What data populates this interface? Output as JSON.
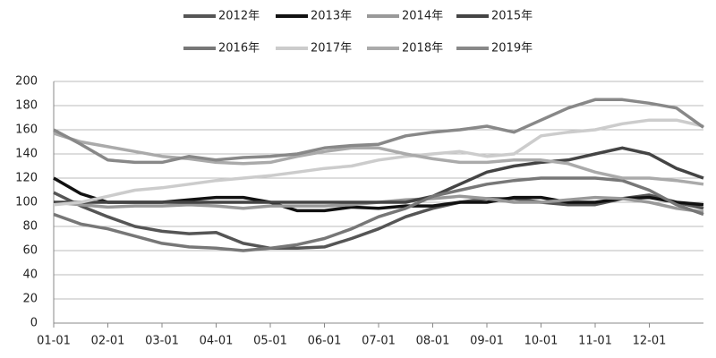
{
  "chart_data": {
    "type": "line",
    "categories": [
      "01-01",
      null,
      "02-01",
      null,
      "03-01",
      null,
      "04-01",
      null,
      "05-01",
      null,
      "06-01",
      null,
      "07-01",
      null,
      "08-01",
      null,
      "09-01",
      null,
      "10-01",
      null,
      "11-01",
      null,
      "12-01",
      null,
      null
    ],
    "ylim": [
      0,
      200
    ],
    "yticks": [
      0,
      20,
      40,
      60,
      80,
      100,
      120,
      140,
      160,
      180,
      200
    ],
    "grid": true,
    "series": [
      {
        "name": "2012年",
        "color": "#555555",
        "values": [
          108,
          97,
          88,
          80,
          76,
          74,
          75,
          66,
          62,
          62,
          63,
          70,
          78,
          88,
          95,
          100,
          103,
          103,
          100,
          98,
          98,
          103,
          106,
          100,
          95
        ]
      },
      {
        "name": "2013年",
        "color": "#111111",
        "values": [
          120,
          107,
          100,
          100,
          100,
          102,
          104,
          104,
          100,
          93,
          93,
          96,
          95,
          97,
          97,
          100,
          100,
          104,
          104,
          100,
          100,
          103,
          104,
          100,
          98
        ]
      },
      {
        "name": "2014年",
        "color": "#999999",
        "values": [
          100,
          98,
          96,
          97,
          97,
          98,
          97,
          95,
          97,
          97,
          97,
          98,
          100,
          102,
          103,
          105,
          103,
          100,
          100,
          102,
          104,
          103,
          100,
          95,
          92
        ]
      },
      {
        "name": "2015年",
        "color": "#444444",
        "values": [
          100,
          100,
          100,
          100,
          100,
          100,
          100,
          100,
          100,
          100,
          100,
          100,
          100,
          100,
          105,
          115,
          125,
          130,
          133,
          135,
          140,
          145,
          140,
          128,
          120
        ]
      },
      {
        "name": "2016年",
        "color": "#777777",
        "values": [
          90,
          82,
          78,
          72,
          66,
          63,
          62,
          60,
          62,
          65,
          70,
          78,
          88,
          95,
          105,
          110,
          115,
          118,
          120,
          120,
          120,
          118,
          110,
          98,
          90
        ]
      },
      {
        "name": "2017年",
        "color": "#cccccc",
        "values": [
          98,
          100,
          105,
          110,
          112,
          115,
          118,
          120,
          122,
          125,
          128,
          130,
          135,
          138,
          140,
          142,
          138,
          140,
          155,
          158,
          160,
          165,
          168,
          168,
          163
        ]
      },
      {
        "name": "2018年",
        "color": "#aaaaaa",
        "values": [
          157,
          150,
          146,
          142,
          138,
          136,
          133,
          132,
          133,
          138,
          142,
          145,
          145,
          140,
          136,
          133,
          133,
          135,
          135,
          132,
          125,
          120,
          120,
          118,
          115
        ]
      },
      {
        "name": "2019年",
        "color": "#888888",
        "values": [
          160,
          148,
          135,
          133,
          133,
          138,
          135,
          137,
          138,
          140,
          145,
          147,
          148,
          155,
          158,
          160,
          163,
          158,
          168,
          178,
          185,
          185,
          182,
          178,
          162
        ]
      }
    ]
  }
}
